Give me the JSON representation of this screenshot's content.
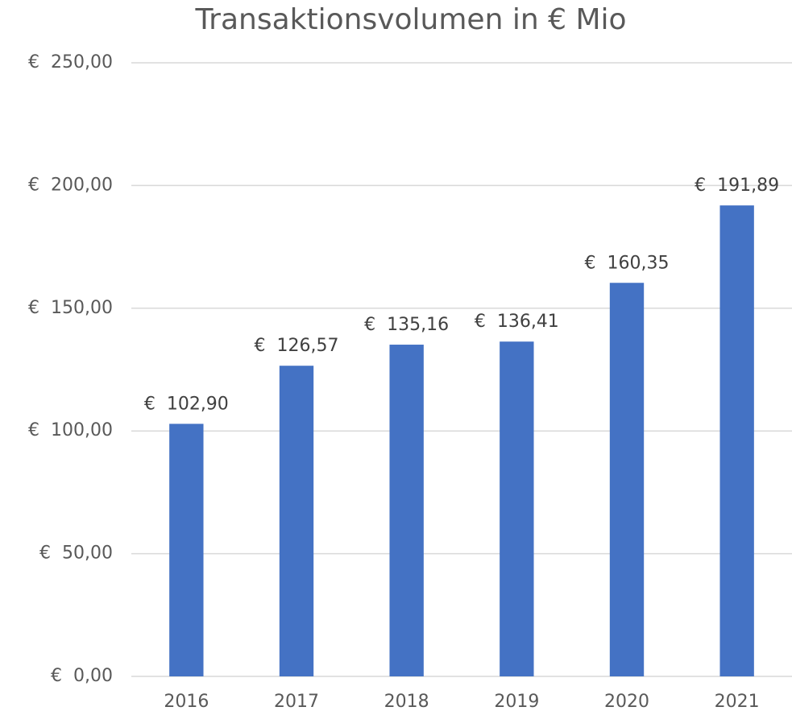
{
  "chart_data": {
    "type": "bar",
    "title": "Transaktionsvolumen in € Mio",
    "categories": [
      "2016",
      "2017",
      "2018",
      "2019",
      "2020",
      "2021"
    ],
    "values": [
      102.9,
      126.57,
      135.16,
      136.41,
      160.35,
      191.89
    ],
    "value_labels": [
      "€  102,90",
      "€  126,57",
      "€  135,16",
      "€  136,41",
      "€  160,35",
      "€  191,89"
    ],
    "color": "#4472c4",
    "ylim": [
      0,
      250
    ],
    "yticks": [
      {
        "value": 0,
        "label": "€  0,00"
      },
      {
        "value": 50,
        "label": "€  50,00"
      },
      {
        "value": 100,
        "label": "€  100,00"
      },
      {
        "value": 150,
        "label": "€  150,00"
      },
      {
        "value": 200,
        "label": "€  200,00"
      },
      {
        "value": 250,
        "label": "€  250,00"
      }
    ],
    "grid": true
  }
}
